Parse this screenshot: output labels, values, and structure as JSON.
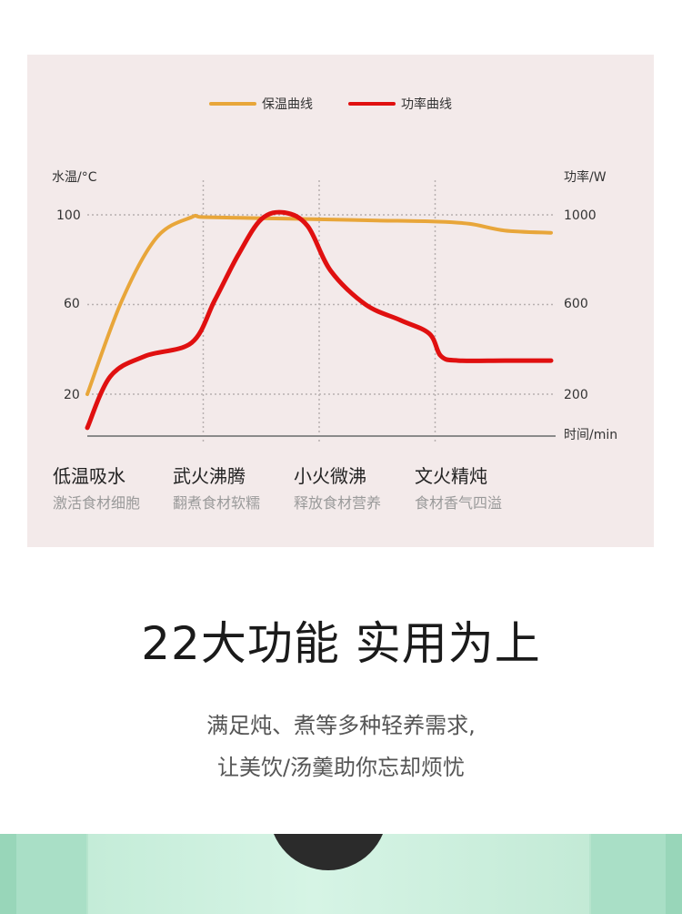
{
  "chart_data": {
    "type": "line",
    "legend": [
      {
        "name": "保温曲线",
        "color": "#e8a63a"
      },
      {
        "name": "功率曲线",
        "color": "#e01010"
      }
    ],
    "y_left": {
      "label": "水温/°C",
      "ticks": [
        "100",
        "60",
        "20"
      ]
    },
    "y_right": {
      "label": "功率/W",
      "ticks": [
        "1000",
        "600",
        "200"
      ]
    },
    "x_label": "时间/min",
    "ylim_left": [
      20,
      100
    ],
    "ylim_right": [
      200,
      1000
    ],
    "grid": "dotted",
    "series": [
      {
        "name": "保温曲线",
        "color": "#e8a63a",
        "x": [
          0,
          0.3,
          0.6,
          0.9,
          1.0,
          1.5,
          2.0,
          2.5,
          3.0,
          3.3,
          3.6,
          4.0
        ],
        "y": [
          20,
          62,
          90,
          99,
          99,
          98.5,
          98,
          97.5,
          97,
          96,
          93,
          92
        ]
      },
      {
        "name": "功率曲线",
        "color": "#e01010",
        "x": [
          0,
          0.2,
          0.5,
          0.9,
          1.1,
          1.3,
          1.5,
          1.7,
          1.9,
          2.1,
          2.4,
          2.7,
          2.95,
          3.05,
          3.2,
          3.6,
          4.0
        ],
        "y": [
          50,
          280,
          370,
          430,
          620,
          820,
          980,
          1010,
          950,
          750,
          600,
          530,
          470,
          370,
          350,
          350,
          350
        ]
      }
    ],
    "phase_dividers_x": [
      1,
      2,
      3
    ]
  },
  "phases": [
    {
      "title": "低温吸水",
      "sub": "激活食材细胞"
    },
    {
      "title": "武火沸腾",
      "sub": "翻煮食材软糯"
    },
    {
      "title": "小火微沸",
      "sub": "释放食材营养"
    },
    {
      "title": "文火精炖",
      "sub": "食材香气四溢"
    }
  ],
  "headline": "22大功能 实用为上",
  "description": {
    "line1": "满足炖、煮等多种轻养需求,",
    "line2": "让美饮/汤羹助你忘却烦忧"
  }
}
